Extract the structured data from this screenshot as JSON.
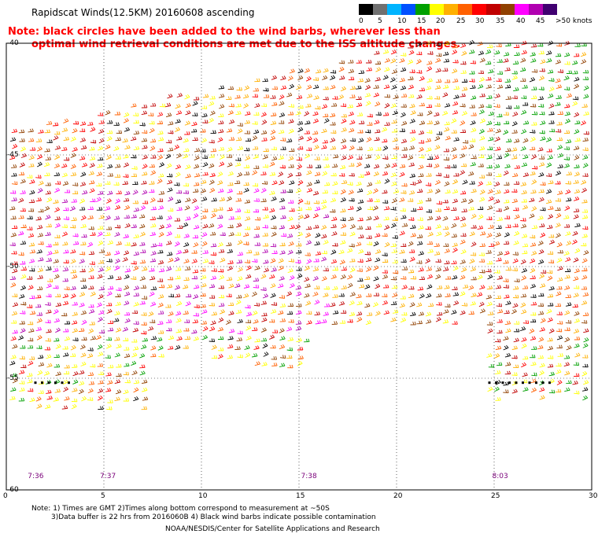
{
  "title": "Rapidscat Winds(12.5KM) 20160608 ascending",
  "note": {
    "line1": "Note: black circles have been added to the wind barbs, wherever less than",
    "line2": "optimal wind retrieval conditions are met due to the ISS altitude changes."
  },
  "legend": {
    "labels": [
      "0",
      "5",
      "10",
      "15",
      "20",
      "25",
      "30",
      "35",
      "40",
      "45",
      ">50 knots"
    ],
    "colors": [
      "#000000",
      "#707070",
      "#00b4ff",
      "#0050ff",
      "#00a000",
      "#ffff00",
      "#ffb000",
      "#ff6000",
      "#ff0000",
      "#c00000",
      "#904000",
      "#ff00ff",
      "#b000b0",
      "#400070"
    ]
  },
  "axes": {
    "x_ticks": [
      "0",
      "5",
      "10",
      "15",
      "20",
      "25",
      "30"
    ],
    "y_ticks": [
      "-40",
      "-45",
      "-50",
      "-55",
      "-60"
    ]
  },
  "pass_times": [
    "7:36",
    "7:37",
    "7:38",
    "8:03"
  ],
  "footer": {
    "line1": "Note: 1) Times are GMT 2)Times along bottom correspond to measurement at ~50S",
    "line2": "3)Data buffer is 22 hrs from 2016060B 4) Black wind barbs indicate possible contamination",
    "line3": "NOAA/NESDIS/Center for Satellite Applications and Research"
  },
  "chart_data": {
    "type": "scatter",
    "title": "Rapidscat Winds(12.5KM) 20160608 ascending",
    "xlim": [
      0,
      30
    ],
    "ylim": [
      -60,
      -40
    ],
    "x_ticks": [
      0,
      5,
      10,
      15,
      20,
      25,
      30
    ],
    "y_ticks": [
      -40,
      -45,
      -50,
      -55,
      -60
    ],
    "speed_bins_knots": [
      0,
      5,
      10,
      15,
      20,
      25,
      30,
      35,
      40,
      45,
      50
    ]
  }
}
